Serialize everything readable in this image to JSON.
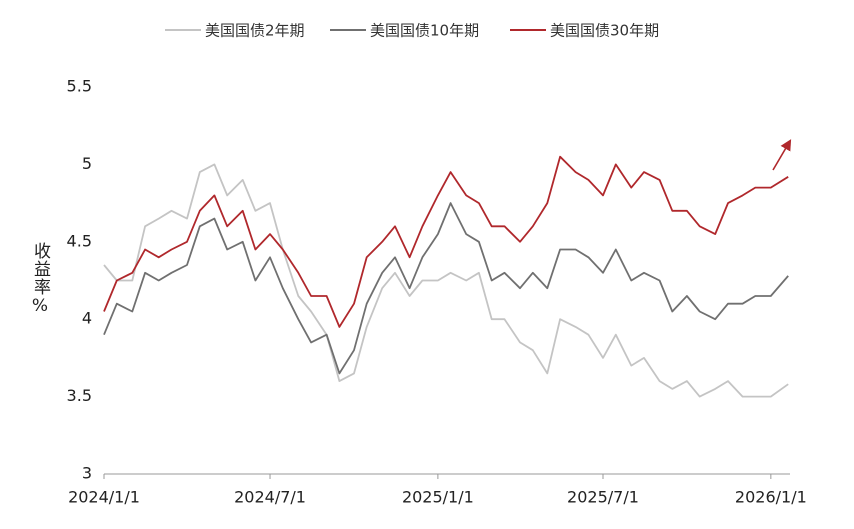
{
  "chart_data": {
    "type": "line",
    "x": [
      "2024/1/1",
      "2024/1/15",
      "2024/2/1",
      "2024/2/15",
      "2024/3/1",
      "2024/3/15",
      "2024/4/1",
      "2024/4/15",
      "2024/5/1",
      "2024/5/15",
      "2024/6/1",
      "2024/6/15",
      "2024/7/1",
      "2024/7/15",
      "2024/8/1",
      "2024/8/15",
      "2024/9/1",
      "2024/9/15",
      "2024/10/1",
      "2024/10/15",
      "2024/11/1",
      "2024/11/15",
      "2024/12/1",
      "2024/12/15",
      "2025/1/1",
      "2025/1/15",
      "2025/2/1",
      "2025/2/15",
      "2025/3/1",
      "2025/3/15",
      "2025/4/1",
      "2025/4/15",
      "2025/5/1",
      "2025/5/15",
      "2025/6/1",
      "2025/6/15",
      "2025/7/1",
      "2025/7/15",
      "2025/8/1",
      "2025/8/15",
      "2025/9/1",
      "2025/9/15",
      "2025/10/1",
      "2025/10/15",
      "2025/11/1",
      "2025/11/15",
      "2025/12/1",
      "2025/12/15",
      "2026/1/1",
      "2026/1/20"
    ],
    "series": [
      {
        "name": "美国国债2年期",
        "color": "#c4c4c4",
        "values": [
          4.35,
          4.25,
          4.25,
          4.6,
          4.65,
          4.7,
          4.65,
          4.95,
          5.0,
          4.8,
          4.9,
          4.7,
          4.75,
          4.45,
          4.15,
          4.05,
          3.9,
          3.6,
          3.65,
          3.95,
          4.2,
          4.3,
          4.15,
          4.25,
          4.25,
          4.3,
          4.25,
          4.3,
          4.0,
          4.0,
          3.85,
          3.8,
          3.65,
          4.0,
          3.95,
          3.9,
          3.75,
          3.9,
          3.7,
          3.75,
          3.6,
          3.55,
          3.6,
          3.5,
          3.55,
          3.6,
          3.5,
          3.5,
          3.5,
          3.58
        ]
      },
      {
        "name": "美国国债10年期",
        "color": "#707070",
        "values": [
          3.9,
          4.1,
          4.05,
          4.3,
          4.25,
          4.3,
          4.35,
          4.6,
          4.65,
          4.45,
          4.5,
          4.25,
          4.4,
          4.2,
          4.0,
          3.85,
          3.9,
          3.65,
          3.8,
          4.1,
          4.3,
          4.4,
          4.2,
          4.4,
          4.55,
          4.75,
          4.55,
          4.5,
          4.25,
          4.3,
          4.2,
          4.3,
          4.2,
          4.45,
          4.45,
          4.4,
          4.3,
          4.45,
          4.25,
          4.3,
          4.25,
          4.05,
          4.15,
          4.05,
          4.0,
          4.1,
          4.1,
          4.15,
          4.15,
          4.28
        ]
      },
      {
        "name": "美国国债30年期",
        "color": "#b0282c",
        "values": [
          4.05,
          4.25,
          4.3,
          4.45,
          4.4,
          4.45,
          4.5,
          4.7,
          4.8,
          4.6,
          4.7,
          4.45,
          4.55,
          4.45,
          4.3,
          4.15,
          4.15,
          3.95,
          4.1,
          4.4,
          4.5,
          4.6,
          4.4,
          4.6,
          4.8,
          4.95,
          4.8,
          4.75,
          4.6,
          4.6,
          4.5,
          4.6,
          4.75,
          5.05,
          4.95,
          4.9,
          4.8,
          5.0,
          4.85,
          4.95,
          4.9,
          4.7,
          4.7,
          4.6,
          4.55,
          4.75,
          4.8,
          4.85,
          4.85,
          4.92
        ]
      }
    ],
    "ylabel": "收益率%",
    "ylim": [
      3,
      5.5
    ],
    "yticks": [
      3,
      3.5,
      4,
      4.5,
      5,
      5.5
    ],
    "xlim": [
      "2024/1/1",
      "2026/1/22"
    ],
    "xticks": [
      "2024/1/1",
      "2024/7/1",
      "2025/1/1",
      "2025/7/1",
      "2026/1/1"
    ]
  }
}
